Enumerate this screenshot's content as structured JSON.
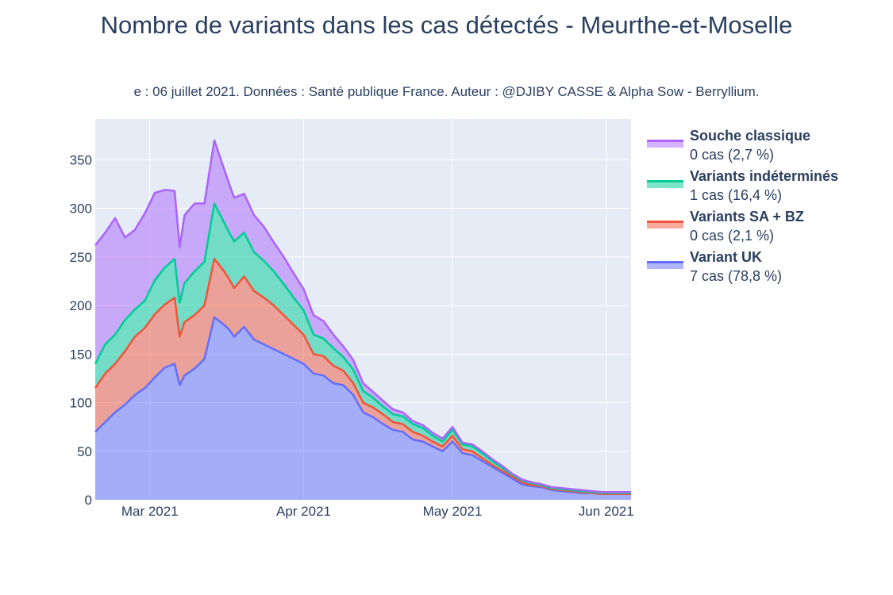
{
  "chart_data": {
    "type": "area",
    "stacked": true,
    "title": "Nombre de variants dans les cas détectés - Meurthe-et-Moselle",
    "subtitle": "e : 06 juillet 2021. Données : Santé publique France. Auteur : @DJIBY CASSE & Alpha Sow - Berryllium.",
    "xlabel": "",
    "ylabel": "",
    "xlim": [
      "2021-02-18",
      "2021-06-06"
    ],
    "ylim": [
      0,
      392
    ],
    "x_ticks": [
      {
        "date": "2021-03-01",
        "label": "Mar 2021"
      },
      {
        "date": "2021-04-01",
        "label": "Apr 2021"
      },
      {
        "date": "2021-05-01",
        "label": "May 2021"
      },
      {
        "date": "2021-06-01",
        "label": "Jun 2021"
      }
    ],
    "y_ticks": [
      0,
      50,
      100,
      150,
      200,
      250,
      300,
      350
    ],
    "grid": true,
    "legend_position": "right",
    "x": [
      "2021-02-18",
      "2021-02-20",
      "2021-02-22",
      "2021-02-24",
      "2021-02-26",
      "2021-02-28",
      "2021-03-02",
      "2021-03-04",
      "2021-03-06",
      "2021-03-07",
      "2021-03-08",
      "2021-03-10",
      "2021-03-12",
      "2021-03-14",
      "2021-03-16",
      "2021-03-17",
      "2021-03-18",
      "2021-03-20",
      "2021-03-22",
      "2021-03-24",
      "2021-03-26",
      "2021-03-28",
      "2021-03-30",
      "2021-04-01",
      "2021-04-03",
      "2021-04-05",
      "2021-04-07",
      "2021-04-09",
      "2021-04-11",
      "2021-04-13",
      "2021-04-15",
      "2021-04-17",
      "2021-04-19",
      "2021-04-21",
      "2021-04-23",
      "2021-04-25",
      "2021-04-27",
      "2021-04-29",
      "2021-05-01",
      "2021-05-03",
      "2021-05-05",
      "2021-05-07",
      "2021-05-09",
      "2021-05-11",
      "2021-05-13",
      "2021-05-15",
      "2021-05-17",
      "2021-05-19",
      "2021-05-21",
      "2021-05-23",
      "2021-05-25",
      "2021-05-27",
      "2021-05-29",
      "2021-05-31",
      "2021-06-02",
      "2021-06-04",
      "2021-06-06"
    ],
    "series": [
      {
        "name": "Variant UK",
        "summary": "7 cas (78,8 %)",
        "color": "#636efa",
        "values": [
          70,
          80,
          90,
          98,
          108,
          115,
          126,
          136,
          140,
          118,
          128,
          135,
          145,
          188,
          180,
          175,
          168,
          178,
          165,
          160,
          155,
          150,
          145,
          140,
          130,
          128,
          120,
          118,
          108,
          90,
          85,
          78,
          72,
          70,
          62,
          60,
          55,
          50,
          60,
          48,
          46,
          40,
          34,
          28,
          22,
          16,
          14,
          13,
          10,
          9,
          8,
          7,
          7,
          6,
          6,
          6,
          6
        ]
      },
      {
        "name": "Variants SA + BZ",
        "summary": "0 cas (2,1 %)",
        "color": "#ef553b",
        "values": [
          45,
          50,
          50,
          55,
          60,
          62,
          65,
          65,
          68,
          50,
          55,
          55,
          55,
          60,
          55,
          52,
          50,
          52,
          50,
          48,
          45,
          40,
          35,
          30,
          20,
          20,
          18,
          15,
          12,
          10,
          10,
          10,
          8,
          8,
          8,
          6,
          5,
          5,
          6,
          4,
          4,
          3,
          2,
          2,
          2,
          2,
          1,
          1,
          1,
          1,
          1,
          1,
          0,
          0,
          0,
          0,
          0
        ]
      },
      {
        "name": "Variants indéterminés",
        "summary": "1 cas (16,4 %)",
        "color": "#00cc96",
        "values": [
          25,
          30,
          30,
          32,
          28,
          28,
          35,
          38,
          40,
          35,
          40,
          45,
          45,
          57,
          50,
          48,
          48,
          45,
          40,
          38,
          35,
          32,
          28,
          25,
          20,
          18,
          18,
          14,
          14,
          12,
          10,
          8,
          8,
          8,
          8,
          8,
          6,
          5,
          6,
          5,
          5,
          5,
          4,
          3,
          2,
          2,
          2,
          1,
          1,
          1,
          1,
          1,
          1,
          1,
          1,
          1,
          1
        ]
      },
      {
        "name": "Souche classique",
        "summary": "0 cas (2,7 %)",
        "color": "#ab63fa",
        "values": [
          122,
          115,
          120,
          85,
          82,
          90,
          90,
          80,
          70,
          57,
          70,
          70,
          60,
          65,
          55,
          50,
          45,
          40,
          38,
          35,
          30,
          28,
          25,
          22,
          20,
          18,
          14,
          11,
          10,
          8,
          6,
          6,
          5,
          4,
          3,
          3,
          3,
          3,
          3,
          2,
          2,
          2,
          2,
          2,
          1,
          1,
          1,
          1,
          1,
          1,
          1,
          1,
          1,
          1,
          1,
          1,
          1
        ]
      }
    ]
  }
}
